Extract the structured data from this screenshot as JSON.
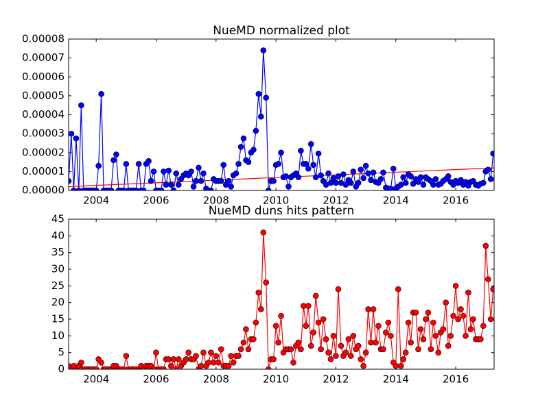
{
  "chart_data": [
    {
      "type": "line",
      "title": "NueMD normalized plot",
      "x": [
        2003.08,
        2003.17,
        2003.25,
        2003.33,
        2003.42,
        2003.5,
        2003.58,
        2003.67,
        2003.75,
        2003.83,
        2003.92,
        2004,
        2004.08,
        2004.17,
        2004.25,
        2004.33,
        2004.42,
        2004.5,
        2004.58,
        2004.67,
        2004.75,
        2004.83,
        2004.92,
        2005,
        2005.08,
        2005.17,
        2005.25,
        2005.33,
        2005.42,
        2005.5,
        2005.58,
        2005.67,
        2005.75,
        2005.83,
        2005.92,
        2006,
        2006.08,
        2006.17,
        2006.25,
        2006.33,
        2006.42,
        2006.5,
        2006.58,
        2006.67,
        2006.75,
        2006.83,
        2006.92,
        2007,
        2007.08,
        2007.17,
        2007.25,
        2007.33,
        2007.42,
        2007.5,
        2007.58,
        2007.67,
        2007.75,
        2007.83,
        2007.92,
        2008,
        2008.08,
        2008.17,
        2008.25,
        2008.33,
        2008.42,
        2008.5,
        2008.58,
        2008.67,
        2008.75,
        2008.83,
        2008.92,
        2009,
        2009.08,
        2009.17,
        2009.25,
        2009.33,
        2009.42,
        2009.5,
        2009.58,
        2009.67,
        2009.75,
        2009.83,
        2009.92,
        2010,
        2010.08,
        2010.17,
        2010.25,
        2010.33,
        2010.42,
        2010.5,
        2010.58,
        2010.67,
        2010.75,
        2010.83,
        2010.92,
        2011,
        2011.08,
        2011.17,
        2011.25,
        2011.33,
        2011.42,
        2011.5,
        2011.58,
        2011.67,
        2011.75,
        2011.83,
        2011.92,
        2012,
        2012.08,
        2012.17,
        2012.25,
        2012.33,
        2012.42,
        2012.5,
        2012.58,
        2012.67,
        2012.75,
        2012.83,
        2012.92,
        2013,
        2013.08,
        2013.17,
        2013.25,
        2013.33,
        2013.42,
        2013.5,
        2013.58,
        2013.67,
        2013.75,
        2013.83,
        2013.92,
        2014,
        2014.08,
        2014.17,
        2014.25,
        2014.33,
        2014.42,
        2014.5,
        2014.58,
        2014.67,
        2014.75,
        2014.83,
        2014.92,
        2015,
        2015.08,
        2015.17,
        2015.25,
        2015.33,
        2015.42,
        2015.5,
        2015.58,
        2015.67,
        2015.75,
        2015.83,
        2015.92,
        2016,
        2016.08,
        2016.17,
        2016.25,
        2016.33,
        2016.42,
        2016.5,
        2016.58,
        2016.67,
        2016.75,
        2016.83,
        2016.92,
        2017,
        2017.08,
        2017.17,
        2017.25
      ],
      "series": [
        {
          "color": "#0000ff",
          "values": [
            5e-06,
            3e-05,
            0,
            2.75e-05,
            0,
            4.5e-05,
            0,
            0,
            0,
            0,
            0,
            0,
            1.3e-05,
            5.1e-05,
            0,
            0,
            0,
            0,
            1.6e-05,
            1.9e-05,
            0,
            0,
            0,
            1.4e-05,
            0,
            0,
            0,
            0,
            1.4e-05,
            0,
            0,
            1.4e-05,
            1.55e-05,
            5e-06,
            1e-05,
            0,
            0,
            0,
            1e-05,
            3e-06,
            1.05e-05,
            3e-06,
            0,
            9e-06,
            3e-06,
            6e-06,
            8e-06,
            9e-06,
            8e-06,
            1e-05,
            2e-06,
            5e-06,
            1.2e-05,
            5e-06,
            9e-06,
            1e-06,
            0,
            0,
            6e-06,
            5e-06,
            5e-06,
            5e-06,
            1.35e-05,
            3e-06,
            5e-06,
            2e-06,
            8e-06,
            9e-06,
            1.4e-05,
            2.3e-05,
            2.75e-05,
            1.6e-05,
            1.5e-05,
            2e-05,
            2.15e-05,
            3.15e-05,
            5.1e-05,
            3.9e-05,
            7.4e-05,
            4.9e-05,
            0,
            5e-06,
            5e-06,
            1.35e-05,
            1.4e-05,
            2e-05,
            7e-06,
            7.5e-06,
            2e-06,
            7e-06,
            8e-06,
            9e-06,
            7e-06,
            2.1e-05,
            1.4e-05,
            1.4e-05,
            1.15e-05,
            2.45e-05,
            1.35e-05,
            7e-06,
            1.95e-05,
            8e-06,
            5e-06,
            3e-06,
            9e-06,
            4e-06,
            6.5e-06,
            4e-06,
            7.5e-06,
            4e-06,
            8.5e-06,
            3e-06,
            5.5e-06,
            4e-06,
            1e-05,
            2e-06,
            4e-06,
            1.1e-05,
            6.5e-06,
            1.3e-05,
            9e-06,
            5.5e-06,
            9.5e-06,
            4.5e-06,
            4e-06,
            6e-06,
            9.5e-06,
            1.5e-06,
            1e-06,
            1e-06,
            1.15e-05,
            1e-06,
            2e-06,
            3e-06,
            7e-06,
            4e-06,
            8.5e-06,
            7.5e-06,
            3.5e-06,
            6e-06,
            4.5e-06,
            7e-06,
            3e-06,
            7e-06,
            6e-06,
            5e-06,
            3e-06,
            6e-06,
            3e-06,
            3.5e-06,
            5e-06,
            6e-06,
            7.5e-06,
            4.5e-06,
            3e-06,
            5e-06,
            4e-06,
            5.5e-06,
            3e-06,
            4.5e-06,
            2.5e-06,
            4.5e-06,
            5e-06,
            3e-06,
            2.5e-06,
            3.5e-06,
            4e-06,
            1e-05,
            1.1e-05,
            6e-06,
            1.95e-05
          ]
        }
      ],
      "trend_line": {
        "color": "#ff0000",
        "x": [
          2003.08,
          2017.28
        ],
        "values": [
          2e-06,
          1.19e-05
        ]
      },
      "marker": "circle",
      "xlim": [
        2003.08,
        2017.28
      ],
      "xticks": [
        2004,
        2006,
        2008,
        2010,
        2012,
        2014,
        2016
      ],
      "ylim": [
        0,
        8e-05
      ],
      "yticks": [
        {
          "value": 0,
          "label": "0.00000"
        },
        {
          "value": 1e-05,
          "label": "0.00001"
        },
        {
          "value": 2e-05,
          "label": "0.00002"
        },
        {
          "value": 3e-05,
          "label": "0.00003"
        },
        {
          "value": 4e-05,
          "label": "0.00004"
        },
        {
          "value": 5e-05,
          "label": "0.00005"
        },
        {
          "value": 6e-05,
          "label": "0.00006"
        },
        {
          "value": 7e-05,
          "label": "0.00007"
        },
        {
          "value": 8e-05,
          "label": "0.00008"
        }
      ]
    },
    {
      "type": "line",
      "title": "NueMD duns hits pattern",
      "x": [
        2003.08,
        2003.17,
        2003.25,
        2003.33,
        2003.42,
        2003.5,
        2003.58,
        2003.67,
        2003.75,
        2003.83,
        2003.92,
        2004,
        2004.08,
        2004.17,
        2004.25,
        2004.33,
        2004.42,
        2004.5,
        2004.58,
        2004.67,
        2004.75,
        2004.83,
        2004.92,
        2005,
        2005.08,
        2005.17,
        2005.25,
        2005.33,
        2005.42,
        2005.5,
        2005.58,
        2005.67,
        2005.75,
        2005.83,
        2005.92,
        2006,
        2006.08,
        2006.17,
        2006.25,
        2006.33,
        2006.42,
        2006.5,
        2006.58,
        2006.67,
        2006.75,
        2006.83,
        2006.92,
        2007,
        2007.08,
        2007.17,
        2007.25,
        2007.33,
        2007.42,
        2007.5,
        2007.58,
        2007.67,
        2007.75,
        2007.83,
        2007.92,
        2008,
        2008.08,
        2008.17,
        2008.25,
        2008.33,
        2008.42,
        2008.5,
        2008.58,
        2008.67,
        2008.75,
        2008.83,
        2008.92,
        2009,
        2009.08,
        2009.17,
        2009.25,
        2009.33,
        2009.42,
        2009.5,
        2009.58,
        2009.67,
        2009.75,
        2009.83,
        2009.92,
        2010,
        2010.08,
        2010.17,
        2010.25,
        2010.33,
        2010.42,
        2010.5,
        2010.58,
        2010.67,
        2010.75,
        2010.83,
        2010.92,
        2011,
        2011.08,
        2011.17,
        2011.25,
        2011.33,
        2011.42,
        2011.5,
        2011.58,
        2011.67,
        2011.75,
        2011.83,
        2011.92,
        2012,
        2012.08,
        2012.17,
        2012.25,
        2012.33,
        2012.42,
        2012.5,
        2012.58,
        2012.67,
        2012.75,
        2012.83,
        2012.92,
        2013,
        2013.08,
        2013.17,
        2013.25,
        2013.33,
        2013.42,
        2013.5,
        2013.58,
        2013.67,
        2013.75,
        2013.83,
        2013.92,
        2014,
        2014.08,
        2014.17,
        2014.25,
        2014.33,
        2014.42,
        2014.5,
        2014.58,
        2014.67,
        2014.75,
        2014.83,
        2014.92,
        2015,
        2015.08,
        2015.17,
        2015.25,
        2015.33,
        2015.42,
        2015.5,
        2015.58,
        2015.67,
        2015.75,
        2015.83,
        2015.92,
        2016,
        2016.08,
        2016.17,
        2016.25,
        2016.33,
        2016.42,
        2016.5,
        2016.58,
        2016.67,
        2016.75,
        2016.83,
        2016.92,
        2017,
        2017.08,
        2017.17,
        2017.25
      ],
      "series": [
        {
          "color": "#ff0000",
          "values": [
            1,
            0,
            1,
            0,
            1,
            2,
            0,
            0,
            0,
            0,
            0,
            0,
            3,
            2,
            0,
            0,
            0,
            0,
            1,
            1,
            0,
            0,
            0,
            4,
            0,
            0,
            0,
            0,
            0,
            1,
            0,
            1,
            1,
            1,
            0,
            5,
            0,
            0,
            0,
            3,
            3,
            1,
            3,
            0,
            3,
            1,
            2,
            3,
            5,
            3,
            3,
            4,
            0,
            1,
            5,
            1,
            2,
            5,
            2,
            4,
            2,
            6,
            1,
            1,
            1,
            4,
            2,
            4,
            4,
            6,
            8,
            12,
            6,
            9,
            9,
            14,
            23,
            18,
            41,
            26,
            0,
            3,
            3,
            13,
            8,
            16,
            5,
            6,
            6,
            6,
            2,
            7,
            8,
            6,
            19,
            13,
            19,
            7,
            11,
            22,
            14,
            6,
            15,
            9,
            5,
            3,
            10,
            4,
            24,
            7,
            4,
            5,
            9,
            4,
            10,
            6,
            7,
            3,
            1,
            5,
            18,
            8,
            18,
            8,
            13,
            6,
            6,
            11,
            14,
            10,
            2,
            1,
            24,
            1,
            3,
            5,
            14,
            8,
            17,
            17,
            6,
            12,
            9,
            15,
            17,
            6,
            14,
            10,
            5,
            11,
            12,
            20,
            7,
            10,
            16,
            25,
            15,
            18,
            16,
            10,
            23,
            12,
            15,
            9,
            9,
            9,
            13,
            37,
            27,
            15,
            24
          ]
        }
      ],
      "marker": "circle",
      "xlim": [
        2003.08,
        2017.28
      ],
      "xticks": [
        2004,
        2006,
        2008,
        2010,
        2012,
        2014,
        2016
      ],
      "ylim": [
        0,
        45
      ],
      "yticks": [
        0,
        5,
        10,
        15,
        20,
        25,
        30,
        35,
        40,
        45
      ]
    }
  ]
}
